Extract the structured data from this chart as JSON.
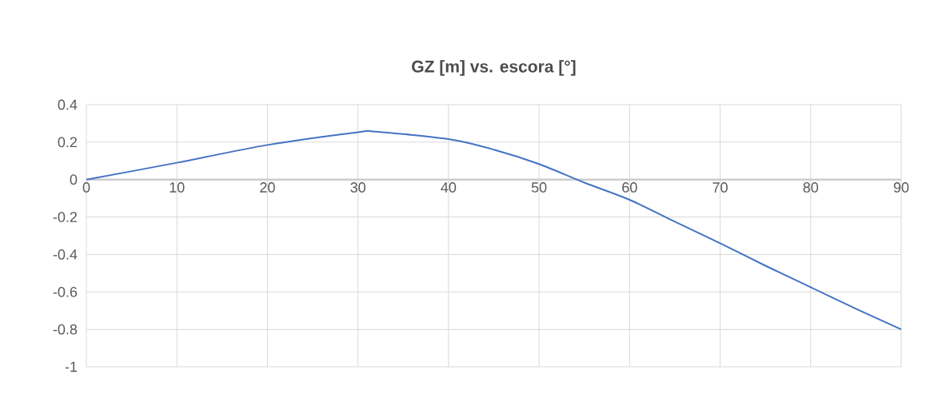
{
  "chart_data": {
    "type": "line",
    "title": "GZ [m] vs. escora [°]",
    "x": [
      0,
      10,
      20,
      30,
      32,
      40,
      45,
      50,
      55,
      60,
      65,
      70,
      75,
      80,
      85,
      90
    ],
    "series": [
      {
        "color": "#4472c4",
        "values": [
          0,
          0.09,
          0.185,
          0.253,
          0.256,
          0.216,
          0.16,
          0.083,
          -0.016,
          -0.108,
          -0.225,
          -0.34,
          -0.46,
          -0.575,
          -0.69,
          -0.8
        ]
      }
    ],
    "xlim": [
      0,
      90
    ],
    "xticks": [
      0,
      10,
      20,
      30,
      40,
      50,
      60,
      70,
      80,
      90
    ],
    "ylim": [
      -1,
      0.4
    ],
    "yticks": [
      {
        "value": -1,
        "label": "-1"
      },
      {
        "value": -0.8,
        "label": "-0.8"
      },
      {
        "value": -0.6,
        "label": "-0.6"
      },
      {
        "value": -0.4,
        "label": "-0.4"
      },
      {
        "value": -0.2,
        "label": "-0.2"
      },
      {
        "value": 0,
        "label": "0"
      },
      {
        "value": 0.2,
        "label": "0.2"
      },
      {
        "value": 0.4,
        "label": "0.4"
      }
    ],
    "grid": true
  }
}
